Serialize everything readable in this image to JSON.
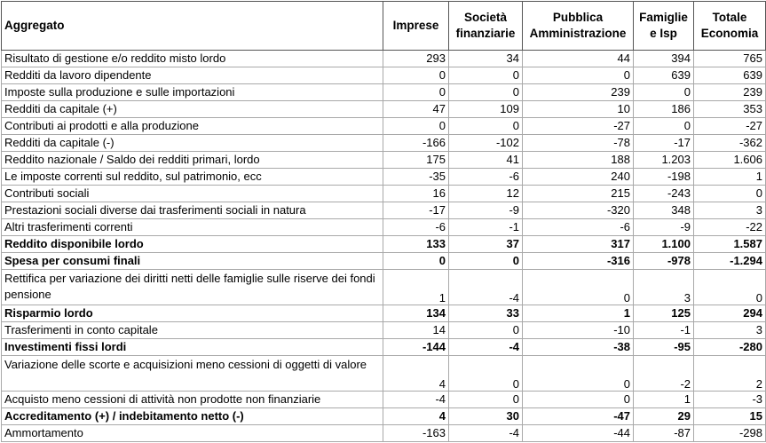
{
  "headers": [
    "Aggregato",
    "Imprese",
    "Società finanziarie",
    "Pubblica Amministrazione",
    "Famiglie e Isp",
    "Totale Economia"
  ],
  "rows": [
    {
      "label": "Risultato di gestione e/o reddito misto lordo",
      "values": [
        "293",
        "34",
        "44",
        "394",
        "765"
      ],
      "bold": false,
      "tall": false
    },
    {
      "label": "Redditi da lavoro dipendente",
      "values": [
        "0",
        "0",
        "0",
        "639",
        "639"
      ],
      "bold": false,
      "tall": false
    },
    {
      "label": "Imposte sulla produzione e sulle importazioni",
      "values": [
        "0",
        "0",
        "239",
        "0",
        "239"
      ],
      "bold": false,
      "tall": false
    },
    {
      "label": "Redditi da capitale (+)",
      "values": [
        "47",
        "109",
        "10",
        "186",
        "353"
      ],
      "bold": false,
      "tall": false
    },
    {
      "label": "Contributi ai prodotti e alla produzione",
      "values": [
        "0",
        "0",
        "-27",
        "0",
        "-27"
      ],
      "bold": false,
      "tall": false
    },
    {
      "label": "Redditi da capitale (-)",
      "values": [
        "-166",
        "-102",
        "-78",
        "-17",
        "-362"
      ],
      "bold": false,
      "tall": false
    },
    {
      "label": "Reddito nazionale / Saldo dei redditi primari, lordo",
      "values": [
        "175",
        "41",
        "188",
        "1.203",
        "1.606"
      ],
      "bold": false,
      "tall": false
    },
    {
      "label": "Le imposte correnti sul reddito, sul patrimonio, ecc",
      "values": [
        "-35",
        "-6",
        "240",
        "-198",
        "1"
      ],
      "bold": false,
      "tall": false
    },
    {
      "label": "Contributi sociali",
      "values": [
        "16",
        "12",
        "215",
        "-243",
        "0"
      ],
      "bold": false,
      "tall": false
    },
    {
      "label": "Prestazioni sociali diverse dai trasferimenti sociali in natura",
      "values": [
        "-17",
        "-9",
        "-320",
        "348",
        "3"
      ],
      "bold": false,
      "tall": false
    },
    {
      "label": "Altri trasferimenti correnti",
      "values": [
        "-6",
        "-1",
        "-6",
        "-9",
        "-22"
      ],
      "bold": false,
      "tall": false
    },
    {
      "label": "Reddito disponibile lordo",
      "values": [
        "133",
        "37",
        "317",
        "1.100",
        "1.587"
      ],
      "bold": true,
      "tall": false
    },
    {
      "label": "Spesa per consumi finali",
      "values": [
        "0",
        "0",
        "-316",
        "-978",
        "-1.294"
      ],
      "bold": true,
      "tall": false
    },
    {
      "label": "Rettifica per variazione dei diritti netti delle famiglie sulle riserve dei fondi pensione",
      "values": [
        "1",
        "-4",
        "0",
        "3",
        "0"
      ],
      "bold": false,
      "tall": true
    },
    {
      "label": "Risparmio lordo",
      "values": [
        "134",
        "33",
        "1",
        "125",
        "294"
      ],
      "bold": true,
      "tall": false
    },
    {
      "label": "Trasferimenti in conto capitale",
      "values": [
        "14",
        "0",
        "-10",
        "-1",
        "3"
      ],
      "bold": false,
      "tall": false
    },
    {
      "label": "Investimenti fissi lordi",
      "values": [
        "-144",
        "-4",
        "-38",
        "-95",
        "-280"
      ],
      "bold": true,
      "tall": false
    },
    {
      "label": "Variazione delle scorte e acquisizioni meno cessioni di oggetti di valore",
      "values": [
        "4",
        "0",
        "0",
        "-2",
        "2"
      ],
      "bold": false,
      "tall": true
    },
    {
      "label": "Acquisto meno cessioni di attività non prodotte non finanziarie",
      "values": [
        "-4",
        "0",
        "0",
        "1",
        "-3"
      ],
      "bold": false,
      "tall": false
    },
    {
      "label": "Accreditamento (+) / indebitamento netto (-)",
      "values": [
        "4",
        "30",
        "-47",
        "29",
        "15"
      ],
      "bold": true,
      "tall": false
    },
    {
      "label": "Ammortamento",
      "values": [
        "-163",
        "-4",
        "-44",
        "-87",
        "-298"
      ],
      "bold": false,
      "tall": false
    }
  ]
}
